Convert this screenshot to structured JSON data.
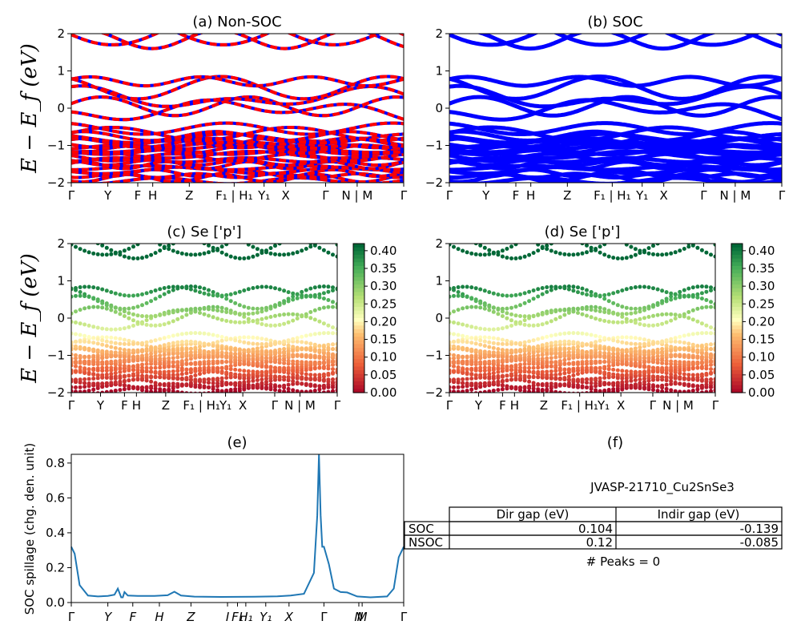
{
  "titles": {
    "a": "(a) Non-SOC",
    "b": "(b) SOC",
    "c": "(c)  Se ['p']",
    "d": "(d) Se ['p']",
    "e": "(e)",
    "f": "(f)"
  },
  "energy_ylabel": "E − E_f (eV)",
  "spillage_ylabel": "SOC spillage (chg. den. unit)",
  "kpath_labels": [
    "Γ",
    "Y",
    "F",
    "H",
    "Z",
    "F₁ | H₁",
    "Y₁",
    "X",
    "Γ",
    "N | M",
    "Γ"
  ],
  "kpath_e_labels": [
    "Γ",
    "Y",
    "F",
    "H",
    "Z",
    "I",
    "F₁",
    "H₁",
    "Y₁",
    "X",
    "Γ",
    "N",
    "M",
    "Γ"
  ],
  "energy_yticks": [
    "2",
    "1",
    "0",
    "−1",
    "−2"
  ],
  "colorbar_ticks": [
    "0.40",
    "0.35",
    "0.30",
    "0.25",
    "0.20",
    "0.15",
    "0.10",
    "0.05",
    "0.00"
  ],
  "colors": {
    "nonsoc_red": "#ff0000",
    "nonsoc_blue": "#0000ff",
    "soc_blue": "#0000ff",
    "spillage_line": "#1f77b4"
  },
  "chart_data": [
    {
      "panel": "a",
      "type": "line",
      "title": "(a) Non-SOC",
      "ylabel": "E − E_f (eV)",
      "ylim": [
        -2,
        2
      ],
      "xticks": [
        "Γ",
        "Y",
        "F",
        "H",
        "Z",
        "F₁ | H₁",
        "Y₁",
        "X",
        "Γ",
        "N | M",
        "Γ"
      ],
      "series": [
        {
          "name": "Non-SOC bands"
        }
      ]
    },
    {
      "panel": "b",
      "type": "line",
      "title": "(b) SOC",
      "ylim": [
        -2,
        2
      ],
      "xticks": [
        "Γ",
        "Y",
        "F",
        "H",
        "Z",
        "F₁ | H₁",
        "Y₁",
        "X",
        "Γ",
        "N | M",
        "Γ"
      ],
      "series": [
        {
          "name": "SOC bands"
        }
      ]
    },
    {
      "panel": "c",
      "type": "scatter",
      "title": "(c)  Se ['p']",
      "ylim": [
        -2,
        2
      ],
      "colorbar": [
        0.0,
        0.42
      ],
      "colormap": "RdYlGn"
    },
    {
      "panel": "d",
      "type": "scatter",
      "title": "(d) Se ['p']",
      "ylim": [
        -2,
        2
      ],
      "colorbar": [
        0.0,
        0.42
      ],
      "colormap": "RdYlGn"
    },
    {
      "panel": "e",
      "type": "line",
      "title": "(e)",
      "ylabel": "SOC spillage (chg. den. unit)",
      "ylim": [
        0,
        0.85
      ],
      "yticks": [
        "0.0",
        "0.2",
        "0.4",
        "0.6",
        "0.8"
      ],
      "x": [
        0,
        0.01,
        0.025,
        0.05,
        0.08,
        0.11,
        0.13,
        0.14,
        0.15,
        0.155,
        0.16,
        0.17,
        0.2,
        0.25,
        0.29,
        0.31,
        0.33,
        0.37,
        0.45,
        0.55,
        0.62,
        0.66,
        0.7,
        0.73,
        0.74,
        0.745,
        0.75,
        0.755,
        0.76,
        0.775,
        0.79,
        0.81,
        0.83,
        0.86,
        0.9,
        0.95,
        0.97,
        0.985,
        1.0
      ],
      "values": [
        0.32,
        0.28,
        0.1,
        0.04,
        0.035,
        0.038,
        0.045,
        0.08,
        0.03,
        0.03,
        0.06,
        0.04,
        0.038,
        0.038,
        0.042,
        0.062,
        0.04,
        0.034,
        0.032,
        0.033,
        0.036,
        0.04,
        0.05,
        0.17,
        0.5,
        0.85,
        0.5,
        0.32,
        0.32,
        0.22,
        0.08,
        0.06,
        0.058,
        0.035,
        0.03,
        0.035,
        0.08,
        0.26,
        0.32
      ]
    },
    {
      "panel": "f",
      "type": "table",
      "title": "(f)",
      "material": "JVASP-21710_Cu2SnSe3",
      "columns": [
        "Dir gap (eV)",
        "Indir gap (eV)"
      ],
      "rows": [
        {
          "label": "SOC",
          "dir": "0.104",
          "indir": "-0.139"
        },
        {
          "label": "NSOC",
          "dir": "0.12",
          "indir": "-0.085"
        }
      ],
      "peaks": "# Peaks = 0"
    }
  ]
}
